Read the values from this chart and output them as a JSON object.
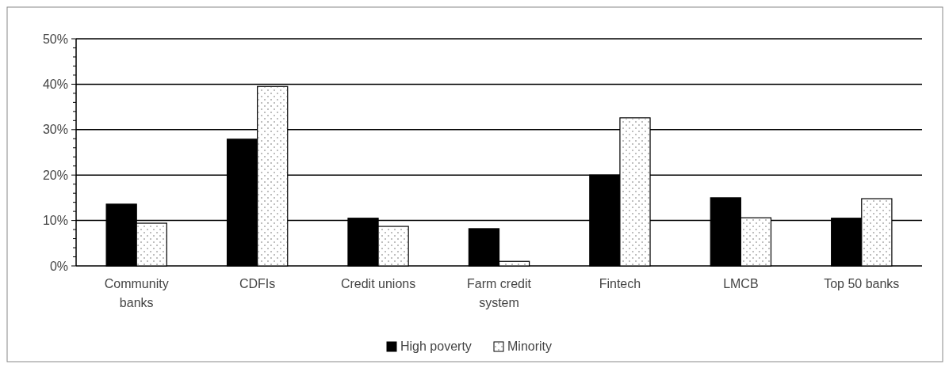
{
  "chart_data": {
    "type": "bar",
    "categories": [
      "Community banks",
      "CDFIs",
      "Credit unions",
      "Farm credit system",
      "Fintech",
      "LMCB",
      "Top 50 banks"
    ],
    "series": [
      {
        "name": "High poverty",
        "color": "#000000",
        "values": [
          13.6,
          27.9,
          10.5,
          8.2,
          20.0,
          15.0,
          10.5
        ]
      },
      {
        "name": "Minority",
        "color": "#ffffff",
        "values": [
          9.4,
          39.5,
          8.7,
          1.0,
          32.6,
          10.6,
          14.8
        ]
      }
    ],
    "ylim": [
      0,
      50
    ],
    "yticks": [
      {
        "value": 0,
        "label": "0%"
      },
      {
        "value": 2,
        "label": null
      },
      {
        "value": 4,
        "label": null
      },
      {
        "value": 6,
        "label": null
      },
      {
        "value": 8,
        "label": null
      },
      {
        "value": 10,
        "label": "10%"
      },
      {
        "value": 12,
        "label": null
      },
      {
        "value": 14,
        "label": null
      },
      {
        "value": 16,
        "label": null
      },
      {
        "value": 18,
        "label": null
      },
      {
        "value": 20,
        "label": "20%"
      },
      {
        "value": 22,
        "label": null
      },
      {
        "value": 24,
        "label": null
      },
      {
        "value": 26,
        "label": null
      },
      {
        "value": 28,
        "label": null
      },
      {
        "value": 30,
        "label": "30%"
      },
      {
        "value": 32,
        "label": null
      },
      {
        "value": 34,
        "label": null
      },
      {
        "value": 36,
        "label": null
      },
      {
        "value": 38,
        "label": null
      },
      {
        "value": 40,
        "label": "40%"
      },
      {
        "value": 42,
        "label": null
      },
      {
        "value": 44,
        "label": null
      },
      {
        "value": 46,
        "label": null
      },
      {
        "value": 48,
        "label": null
      },
      {
        "value": 50,
        "label": "50%"
      }
    ],
    "grid": true,
    "legend": "bottom"
  }
}
